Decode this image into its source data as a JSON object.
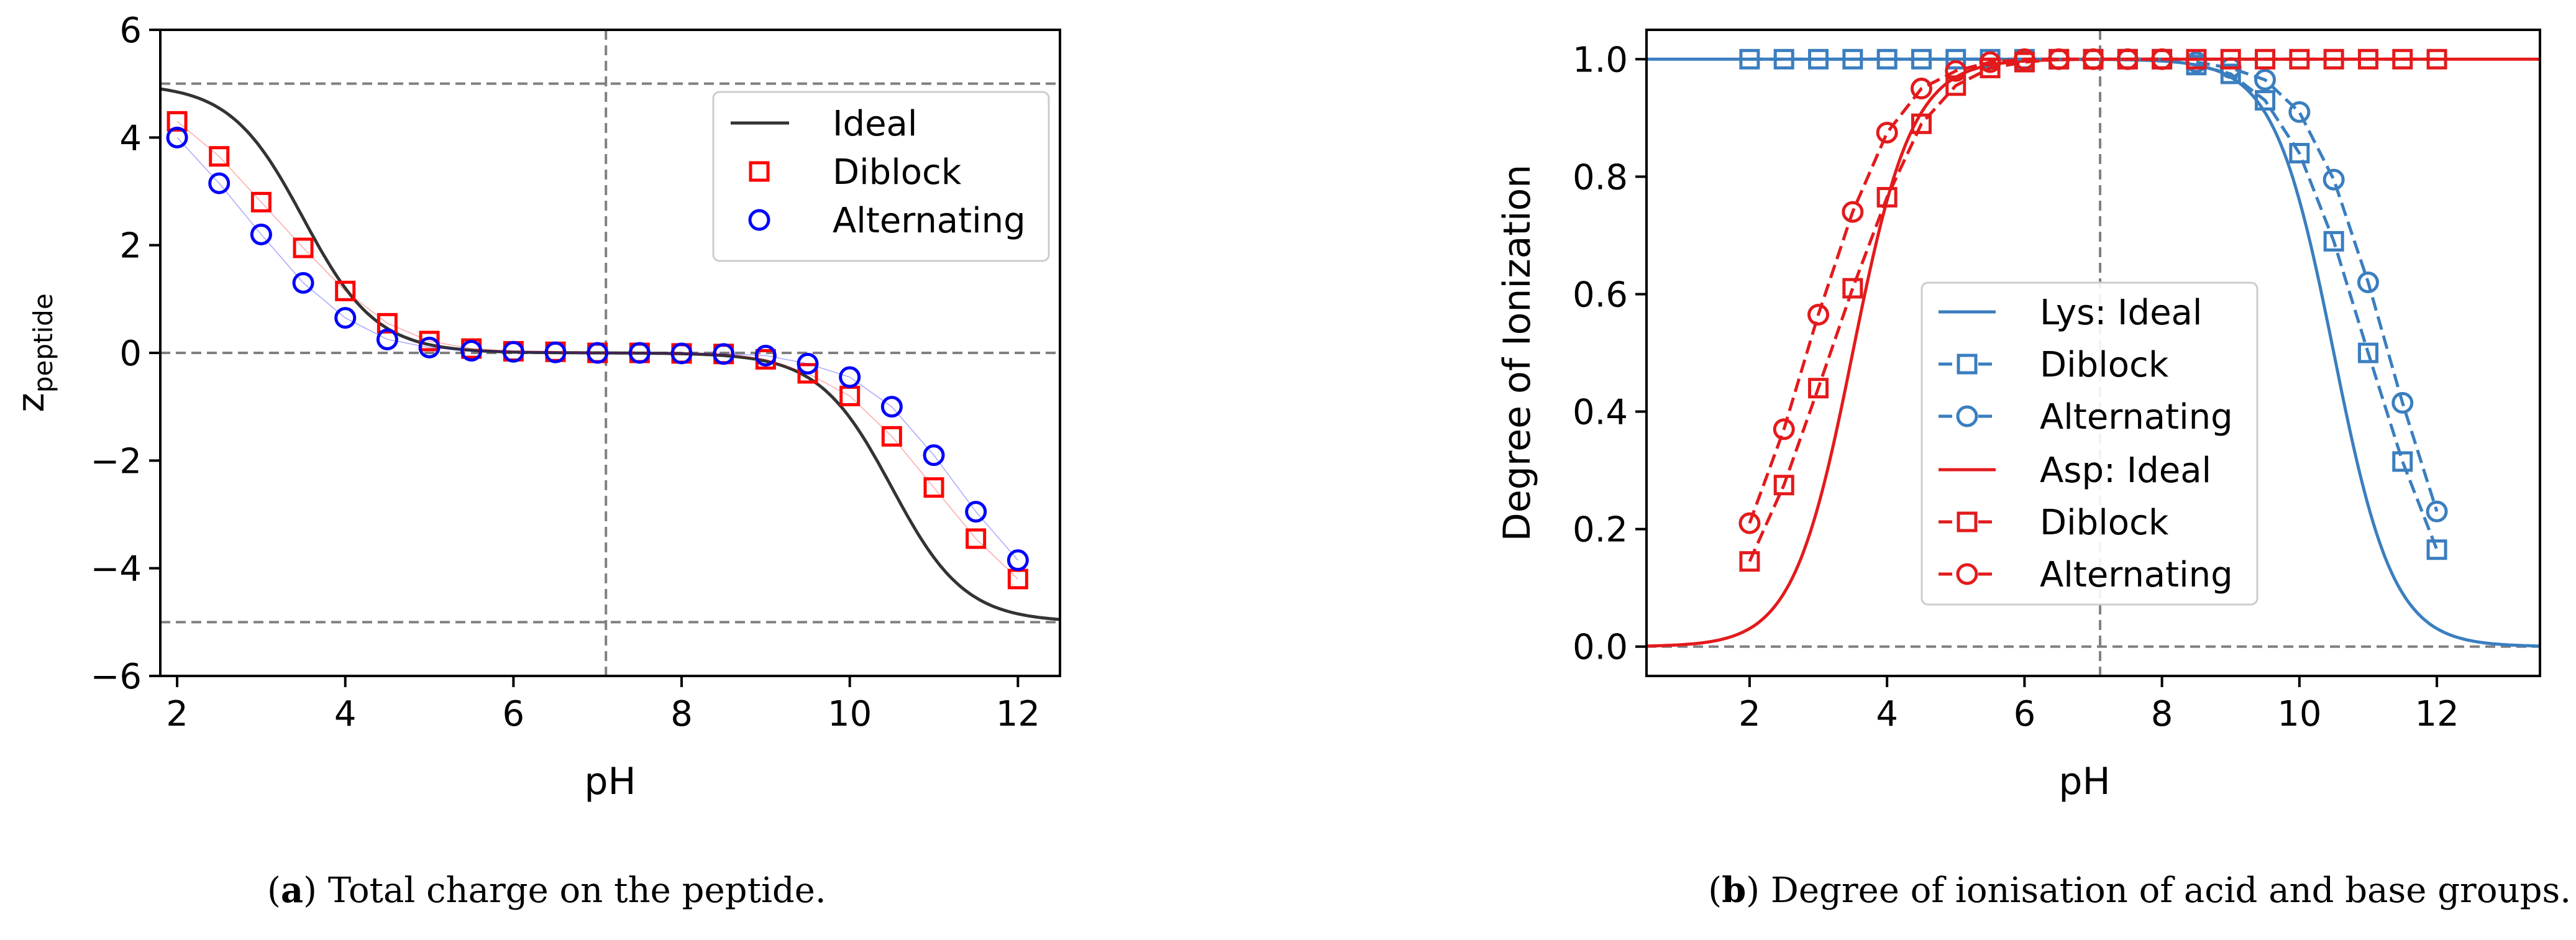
{
  "chart_data": [
    {
      "type": "line",
      "panel": "a",
      "xlabel": "pH",
      "ylabel_main": "z",
      "ylabel_sub": "peptide",
      "xlim": [
        1.8,
        12.5
      ],
      "ylim": [
        -6,
        6
      ],
      "xticks": [
        2,
        4,
        6,
        8,
        10,
        12
      ],
      "yticks": [
        -6,
        -4,
        -2,
        0,
        2,
        4,
        6
      ],
      "xtick_labels": [
        "2",
        "4",
        "6",
        "8",
        "10",
        "12"
      ],
      "ytick_labels": [
        "−6",
        "−4",
        "−2",
        "0",
        "2",
        "4",
        "6"
      ],
      "ref_hlines": [
        5,
        0,
        -5
      ],
      "ref_vline": 7.1,
      "ideal": {
        "name": "Ideal",
        "color": "#333333",
        "n_base": 5,
        "pka_base": 10.5,
        "n_acid": 5,
        "pka_acid": 3.5
      },
      "series": [
        {
          "name": "Diblock",
          "color": "#ff0000",
          "marker": "square",
          "x": [
            2,
            2.5,
            3,
            3.5,
            4,
            4.5,
            5,
            5.5,
            6,
            6.5,
            7,
            7.5,
            8,
            8.5,
            9,
            9.5,
            10,
            10.5,
            11,
            11.5,
            12
          ],
          "values": [
            4.3,
            3.65,
            2.8,
            1.95,
            1.15,
            0.55,
            0.22,
            0.08,
            0.03,
            0.02,
            0.0,
            0.0,
            -0.01,
            -0.02,
            -0.12,
            -0.38,
            -0.8,
            -1.55,
            -2.5,
            -3.45,
            -4.2
          ]
        },
        {
          "name": "Alternating",
          "color": "#0000ff",
          "marker": "circle",
          "x": [
            2,
            2.5,
            3,
            3.5,
            4,
            4.5,
            5,
            5.5,
            6,
            6.5,
            7,
            7.5,
            8,
            8.5,
            9,
            9.5,
            10,
            10.5,
            11,
            11.5,
            12
          ],
          "values": [
            4.0,
            3.15,
            2.2,
            1.3,
            0.65,
            0.25,
            0.1,
            0.04,
            0.02,
            0.01,
            0.0,
            0.0,
            -0.01,
            -0.02,
            -0.05,
            -0.2,
            -0.45,
            -1.0,
            -1.9,
            -2.95,
            -3.85
          ]
        }
      ],
      "legend": [
        "Ideal",
        "Diblock",
        "Alternating"
      ],
      "legend_position": "top-right"
    },
    {
      "type": "line",
      "panel": "b",
      "xlabel": "pH",
      "ylabel": "Degree of Ionization",
      "xlim": [
        0.5,
        13.5
      ],
      "ylim": [
        -0.05,
        1.05
      ],
      "xticks": [
        2,
        4,
        6,
        8,
        10,
        12
      ],
      "yticks": [
        0.0,
        0.2,
        0.4,
        0.6,
        0.8,
        1.0
      ],
      "xtick_labels": [
        "2",
        "4",
        "6",
        "8",
        "10",
        "12"
      ],
      "ytick_labels": [
        "0.0",
        "0.2",
        "0.4",
        "0.6",
        "0.8",
        "1.0"
      ],
      "ref_hlines": [
        1.0,
        0.0
      ],
      "ref_vline": 7.1,
      "ideal_curves": [
        {
          "name": "Lys: Ideal",
          "color": "#3a7ebf",
          "kind": "base",
          "pka": 10.5
        },
        {
          "name": "Asp: Ideal",
          "color": "#e31a1c",
          "kind": "acid",
          "pka": 3.5
        }
      ],
      "series": [
        {
          "name": "Diblock",
          "group": "Lys",
          "color": "#3a7ebf",
          "marker": "square",
          "x": [
            2,
            2.5,
            3,
            3.5,
            4,
            4.5,
            5,
            5.5,
            6,
            6.5,
            7,
            7.5,
            8,
            8.5,
            9,
            9.5,
            10,
            10.5,
            11,
            11.5,
            12
          ],
          "values": [
            1.0,
            1.0,
            1.0,
            1.0,
            1.0,
            1.0,
            1.0,
            1.0,
            1.0,
            1.0,
            1.0,
            1.0,
            1.0,
            0.99,
            0.975,
            0.93,
            0.84,
            0.69,
            0.5,
            0.315,
            0.165
          ]
        },
        {
          "name": "Alternating",
          "group": "Lys",
          "color": "#3a7ebf",
          "marker": "circle",
          "x": [
            8.5,
            9,
            9.5,
            10,
            10.5,
            11,
            11.5,
            12
          ],
          "values": [
            0.995,
            0.985,
            0.965,
            0.91,
            0.795,
            0.62,
            0.415,
            0.23
          ]
        },
        {
          "name": "Diblock",
          "group": "Asp",
          "color": "#e31a1c",
          "marker": "square",
          "x": [
            2,
            2.5,
            3,
            3.5,
            4,
            4.5,
            5,
            5.5,
            6,
            6.5,
            7,
            7.5,
            8,
            8.5,
            9,
            9.5,
            10,
            10.5,
            11,
            11.5,
            12
          ],
          "values": [
            0.145,
            0.275,
            0.44,
            0.61,
            0.765,
            0.89,
            0.955,
            0.985,
            0.995,
            1.0,
            1.0,
            1.0,
            1.0,
            1.0,
            1.0,
            1.0,
            1.0,
            1.0,
            1.0,
            1.0,
            1.0
          ]
        },
        {
          "name": "Alternating",
          "group": "Asp",
          "color": "#e31a1c",
          "marker": "circle",
          "x": [
            2,
            2.5,
            3,
            3.5,
            4,
            4.5,
            5,
            5.5,
            6,
            6.5,
            7,
            7.5,
            8
          ],
          "values": [
            0.21,
            0.37,
            0.565,
            0.74,
            0.875,
            0.95,
            0.98,
            0.995,
            1.0,
            1.0,
            1.0,
            1.0,
            1.0
          ]
        }
      ],
      "legend": [
        "Lys: Ideal",
        "Diblock",
        "Alternating",
        "Asp: Ideal",
        "Diblock",
        "Alternating"
      ],
      "legend_position": "center-left"
    }
  ],
  "captions": {
    "a": {
      "label": "a",
      "text": "Total charge on the peptide."
    },
    "b": {
      "label": "b",
      "text": "Degree of ionisation of acid and base groups."
    }
  }
}
